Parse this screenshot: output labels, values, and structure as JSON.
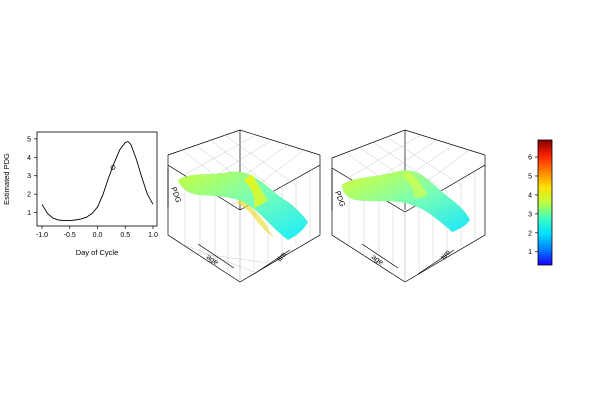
{
  "chart_data": [
    {
      "type": "line",
      "xlabel": "Day of Cycle",
      "ylabel": "Estimated PDG",
      "xlim": [
        -1.0,
        1.0
      ],
      "ylim": [
        0.6,
        5.1
      ],
      "x_ticks": [
        "-1.0",
        "-0.5",
        "0.0",
        "0.5",
        "1.0"
      ],
      "y_ticks": [
        "1",
        "2",
        "3",
        "4",
        "5"
      ],
      "x": [
        -1.0,
        -0.9,
        -0.8,
        -0.7,
        -0.6,
        -0.5,
        -0.4,
        -0.3,
        -0.2,
        -0.1,
        0.0,
        0.1,
        0.2,
        0.3,
        0.4,
        0.5,
        0.55,
        0.6,
        0.7,
        0.8,
        0.9,
        1.0
      ],
      "y": [
        1.45,
        0.95,
        0.7,
        0.6,
        0.57,
        0.57,
        0.6,
        0.65,
        0.75,
        0.95,
        1.3,
        2.0,
        2.9,
        3.7,
        4.4,
        4.8,
        4.85,
        4.7,
        3.9,
        2.9,
        2.0,
        1.45
      ],
      "marker": {
        "x": 0.28,
        "y": 3.45
      }
    },
    {
      "type": "surface",
      "axis_labels": {
        "z": "PDG",
        "x": "age",
        "y": "tim"
      }
    },
    {
      "type": "surface",
      "axis_labels": {
        "z": "PDG",
        "x": "age",
        "y": "tim"
      }
    },
    {
      "type": "colorbar",
      "range": [
        0.3,
        6.9
      ],
      "ticks": [
        "1",
        "2",
        "3",
        "4",
        "5",
        "6"
      ],
      "colors": [
        "#1a00ff",
        "#0080ff",
        "#00e0ff",
        "#40ffc0",
        "#c0ff40",
        "#ffe000",
        "#ff8000",
        "#ff2000",
        "#800000"
      ]
    }
  ]
}
